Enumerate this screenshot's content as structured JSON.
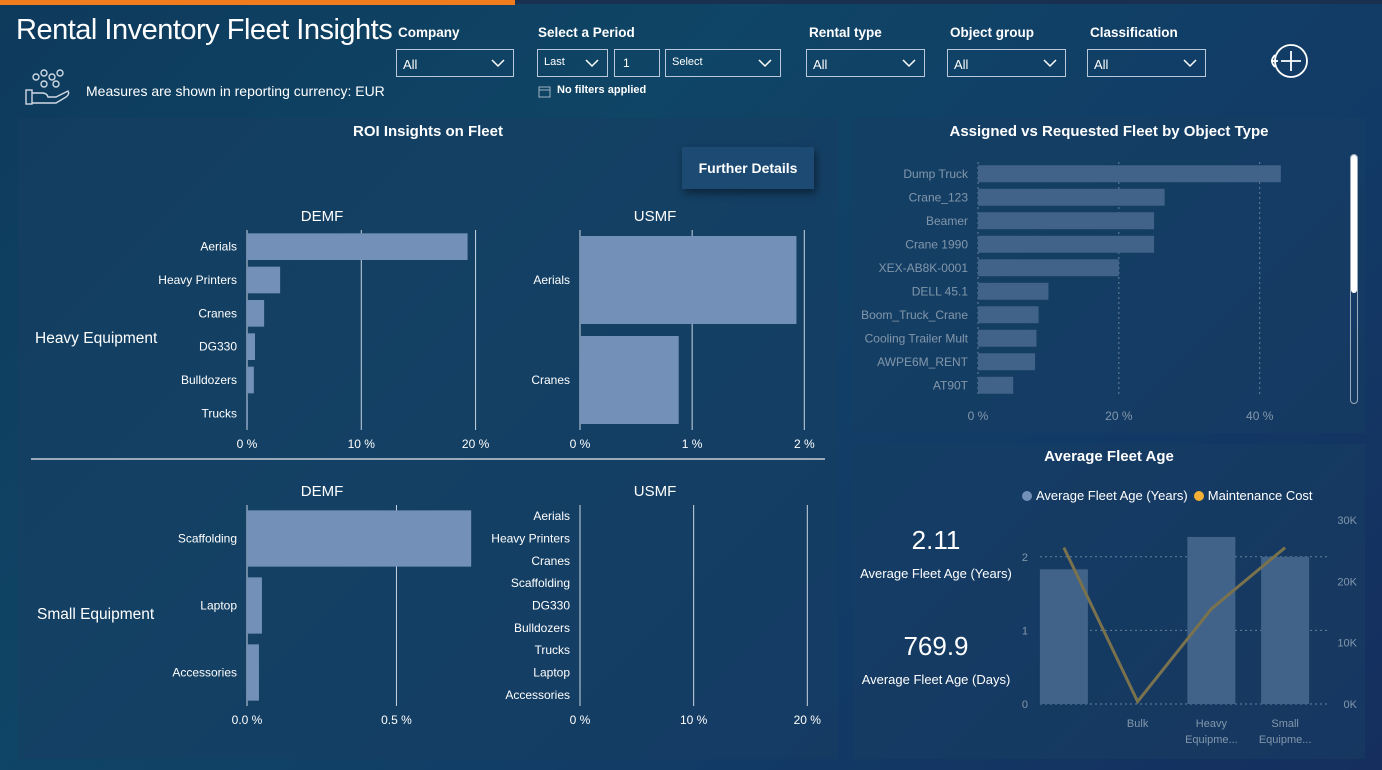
{
  "header": {
    "title": "Rental Inventory Fleet Insights",
    "currency_note": "Measures are shown in reporting currency: EUR"
  },
  "filters": {
    "company": {
      "label": "Company",
      "value": "All"
    },
    "period": {
      "label": "Select a Period",
      "relative": "Last",
      "number": "1",
      "unit": "Select",
      "status": "No filters applied"
    },
    "rental_type": {
      "label": "Rental type",
      "value": "All"
    },
    "object_group": {
      "label": "Object group",
      "value": "All"
    },
    "classification": {
      "label": "Classification",
      "value": "All"
    }
  },
  "roi_panel": {
    "title": "ROI Insights on Fleet",
    "further_details": "Further Details",
    "heavy_label": "Heavy Equipment",
    "small_label": "Small Equipment"
  },
  "assigned_panel": {
    "title": "Assigned vs Requested Fleet by Object Type"
  },
  "age_panel": {
    "title": "Average Fleet Age",
    "kpi_years_value": "2.11",
    "kpi_years_label": "Average Fleet Age (Years)",
    "kpi_days_value": "769.9",
    "kpi_days_label": "Average Fleet Age (Days)",
    "legend_age": "Average Fleet Age (Years)",
    "legend_cost": "Maintenance Cost"
  },
  "colors": {
    "bar": "#7390b8",
    "line": "#f2b134",
    "grid": "#c8d4e0",
    "accent": "#f07c1e"
  },
  "chart_data": [
    {
      "id": "heavy_demf",
      "type": "bar",
      "orientation": "horizontal",
      "title": "DEMF",
      "categories": [
        "Aerials",
        "Heavy Printers",
        "Cranes",
        "DG330",
        "Bulldozers",
        "Trucks"
      ],
      "values": [
        19.3,
        2.9,
        1.5,
        0.7,
        0.6,
        0.05
      ],
      "xlim": [
        0,
        24.5
      ],
      "ticks": [
        0,
        10,
        20
      ],
      "tick_labels": [
        "0 %",
        "10 %",
        "20 %"
      ]
    },
    {
      "id": "heavy_usmf",
      "type": "bar",
      "orientation": "horizontal",
      "title": "USMF",
      "categories": [
        "Aerials",
        "Cranes"
      ],
      "values": [
        1.93,
        0.88
      ],
      "xlim": [
        0,
        2.14
      ],
      "ticks": [
        0,
        1,
        2
      ],
      "tick_labels": [
        "0 %",
        "1 %",
        "2 %"
      ]
    },
    {
      "id": "small_demf",
      "type": "bar",
      "orientation": "horizontal",
      "title": "DEMF",
      "categories": [
        "Scaffolding",
        "Laptop",
        "Accessories"
      ],
      "values": [
        0.75,
        0.05,
        0.04
      ],
      "xlim": [
        0,
        0.92
      ],
      "ticks": [
        0,
        0.5
      ],
      "tick_labels": [
        "0.0 %",
        "0.5 %"
      ]
    },
    {
      "id": "small_usmf",
      "type": "bar",
      "orientation": "horizontal",
      "title": "USMF",
      "categories": [
        "Aerials",
        "Heavy Printers",
        "Cranes",
        "Scaffolding",
        "DG330",
        "Bulldozers",
        "Trucks",
        "Laptop",
        "Accessories"
      ],
      "values": [
        0,
        0,
        0,
        0,
        0,
        0,
        0,
        0,
        0
      ],
      "xlim": [
        0,
        20.5
      ],
      "ticks": [
        0,
        10,
        20
      ],
      "tick_labels": [
        "0 %",
        "10 %",
        "20 %"
      ]
    },
    {
      "id": "assigned",
      "type": "bar",
      "orientation": "horizontal",
      "title": "Assigned vs Requested Fleet by Object Type",
      "categories": [
        "Dump Truck",
        "Crane_123",
        "Beamer",
        "Crane 1990",
        "XEX-AB8K-0001",
        "DELL 45.1",
        "Boom_Truck_Crane",
        "Cooling Trailer Mult",
        "AWPE6M_RENT",
        "AT90T"
      ],
      "values": [
        43,
        26.5,
        25,
        25,
        20,
        10,
        8.6,
        8.3,
        8.1,
        5
      ],
      "xlim": [
        0,
        47
      ],
      "ticks": [
        0,
        20,
        40
      ],
      "tick_labels": [
        "0 %",
        "20 %",
        "40 %"
      ]
    },
    {
      "id": "fleet_age",
      "type": "bar+line",
      "title": "Average Fleet Age",
      "categories": [
        "",
        "Bulk",
        "Heavy Equipme...",
        "Small Equipme..."
      ],
      "series": [
        {
          "name": "Average Fleet Age (Years)",
          "type": "bar",
          "axis": "left",
          "values": [
            1.83,
            null,
            2.27,
            2.0
          ]
        },
        {
          "name": "Maintenance Cost",
          "type": "line",
          "axis": "right",
          "values": [
            25500,
            400,
            15500,
            25500
          ]
        }
      ],
      "ylim_left": [
        0,
        2.5
      ],
      "yticks_left": [
        0,
        1,
        2
      ],
      "ylim_right": [
        0,
        30000
      ],
      "yticks_right": [
        0,
        10000,
        20000,
        30000
      ],
      "ytick_labels_right": [
        "0K",
        "10K",
        "20K",
        "30K"
      ]
    }
  ]
}
